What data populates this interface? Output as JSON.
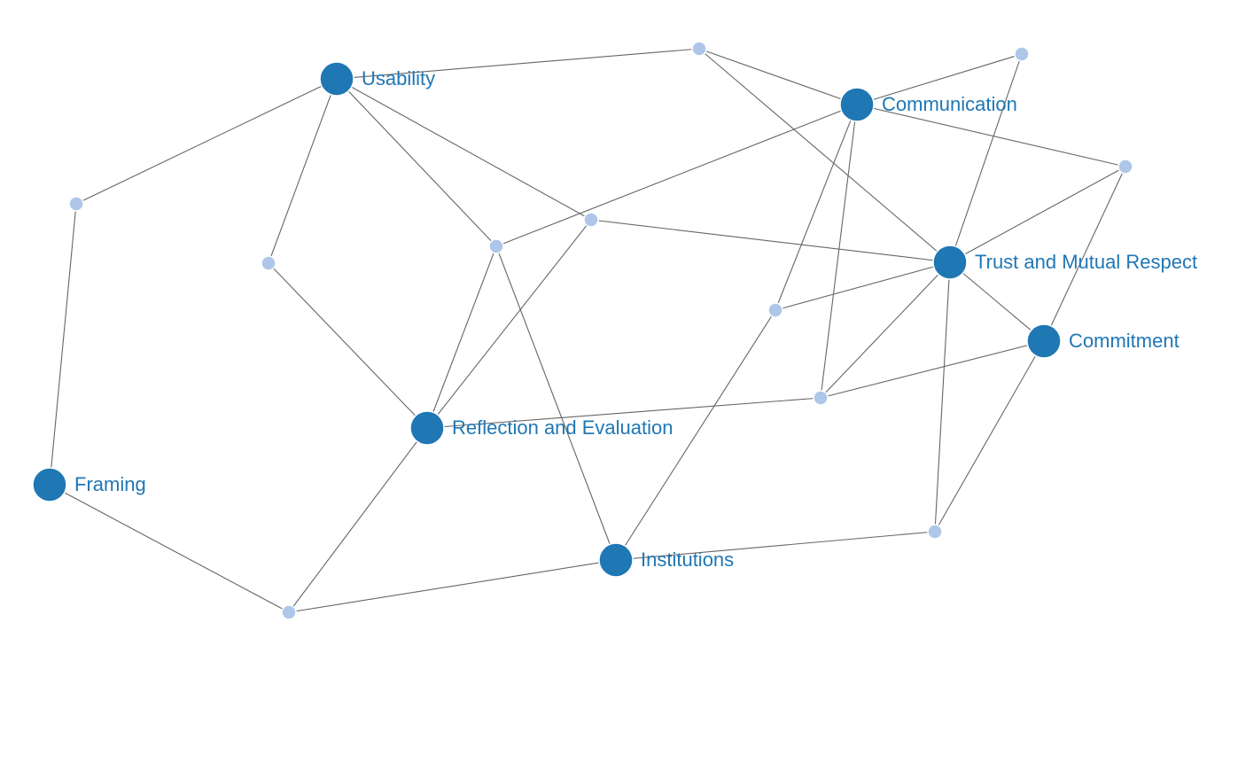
{
  "colors": {
    "major_node": "#1f77b4",
    "minor_node": "#aec7e8",
    "edge": "#666666",
    "label": "#1f77b4"
  },
  "nodes": [
    {
      "id": "usability",
      "label": "Usability",
      "kind": "major"
    },
    {
      "id": "communication",
      "label": "Communication",
      "kind": "major"
    },
    {
      "id": "trust",
      "label": "Trust and Mutual Respect",
      "kind": "major"
    },
    {
      "id": "commitment",
      "label": "Commitment",
      "kind": "major"
    },
    {
      "id": "reflection",
      "label": "Reflection and Evaluation",
      "kind": "major"
    },
    {
      "id": "framing",
      "label": "Framing",
      "kind": "major"
    },
    {
      "id": "institutions",
      "label": "Institutions",
      "kind": "major"
    },
    {
      "id": "m1",
      "label": "",
      "kind": "minor"
    },
    {
      "id": "m2",
      "label": "",
      "kind": "minor"
    },
    {
      "id": "m3",
      "label": "",
      "kind": "minor"
    },
    {
      "id": "m4",
      "label": "",
      "kind": "minor"
    },
    {
      "id": "m5",
      "label": "",
      "kind": "minor"
    },
    {
      "id": "m6",
      "label": "",
      "kind": "minor"
    },
    {
      "id": "m7",
      "label": "",
      "kind": "minor"
    },
    {
      "id": "m8",
      "label": "",
      "kind": "minor"
    },
    {
      "id": "m9",
      "label": "",
      "kind": "minor"
    },
    {
      "id": "m10",
      "label": "",
      "kind": "minor"
    },
    {
      "id": "m11",
      "label": "",
      "kind": "minor"
    },
    {
      "id": "m12",
      "label": "",
      "kind": "minor"
    }
  ],
  "edges": [
    [
      "usability",
      "m1"
    ],
    [
      "usability",
      "m4"
    ],
    [
      "usability",
      "m5"
    ],
    [
      "usability",
      "m6"
    ],
    [
      "usability",
      "m7"
    ],
    [
      "m1",
      "communication"
    ],
    [
      "m1",
      "trust"
    ],
    [
      "communication",
      "m2"
    ],
    [
      "communication",
      "m3"
    ],
    [
      "communication",
      "m5"
    ],
    [
      "communication",
      "m8"
    ],
    [
      "communication",
      "m9"
    ],
    [
      "m2",
      "trust"
    ],
    [
      "m3",
      "trust"
    ],
    [
      "m3",
      "commitment"
    ],
    [
      "m6",
      "trust"
    ],
    [
      "m6",
      "reflection"
    ],
    [
      "m5",
      "reflection"
    ],
    [
      "m5",
      "institutions"
    ],
    [
      "m7",
      "reflection"
    ],
    [
      "m4",
      "framing"
    ],
    [
      "trust",
      "m8"
    ],
    [
      "trust",
      "m9"
    ],
    [
      "trust",
      "commitment"
    ],
    [
      "trust",
      "m10"
    ],
    [
      "m8",
      "institutions"
    ],
    [
      "m9",
      "commitment"
    ],
    [
      "m9",
      "reflection"
    ],
    [
      "commitment",
      "m10"
    ],
    [
      "m10",
      "institutions"
    ],
    [
      "institutions",
      "m11"
    ],
    [
      "m11",
      "framing"
    ],
    [
      "m11",
      "reflection"
    ]
  ]
}
